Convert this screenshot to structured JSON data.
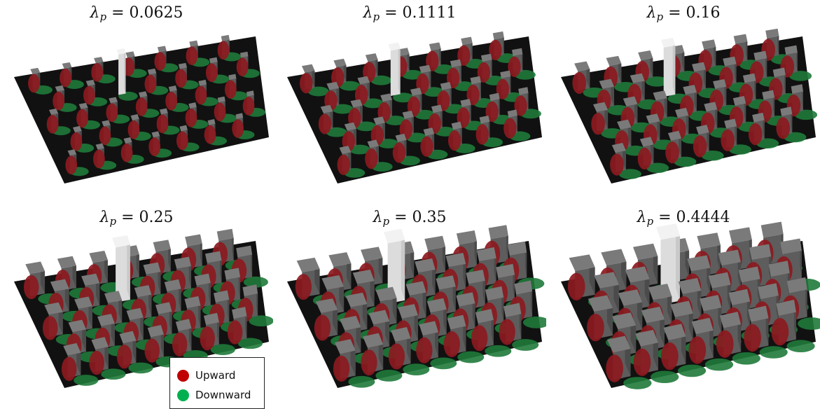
{
  "panels": [
    {
      "symbol": "λ",
      "subscript": "p",
      "value": "0.0625",
      "density": 0.0625
    },
    {
      "symbol": "λ",
      "subscript": "p",
      "value": "0.1111",
      "density": 0.1111
    },
    {
      "symbol": "λ",
      "subscript": "p",
      "value": "0.16",
      "density": 0.16
    },
    {
      "symbol": "λ",
      "subscript": "p",
      "value": "0.25",
      "density": 0.25
    },
    {
      "symbol": "λ",
      "subscript": "p",
      "value": "0.35",
      "density": 0.35
    },
    {
      "symbol": "λ",
      "subscript": "p",
      "value": "0.4444",
      "density": 0.4444
    }
  ],
  "legend": {
    "items": [
      {
        "label": "Upward",
        "color": "#c00000"
      },
      {
        "label": "Downward",
        "color": "#00b050"
      }
    ]
  },
  "colors": {
    "ground": "#111111",
    "block": "#7a7a7a",
    "tall_block": "#f2f2f2",
    "upward": "#8b1a1f",
    "downward": "#1f7a3a"
  }
}
